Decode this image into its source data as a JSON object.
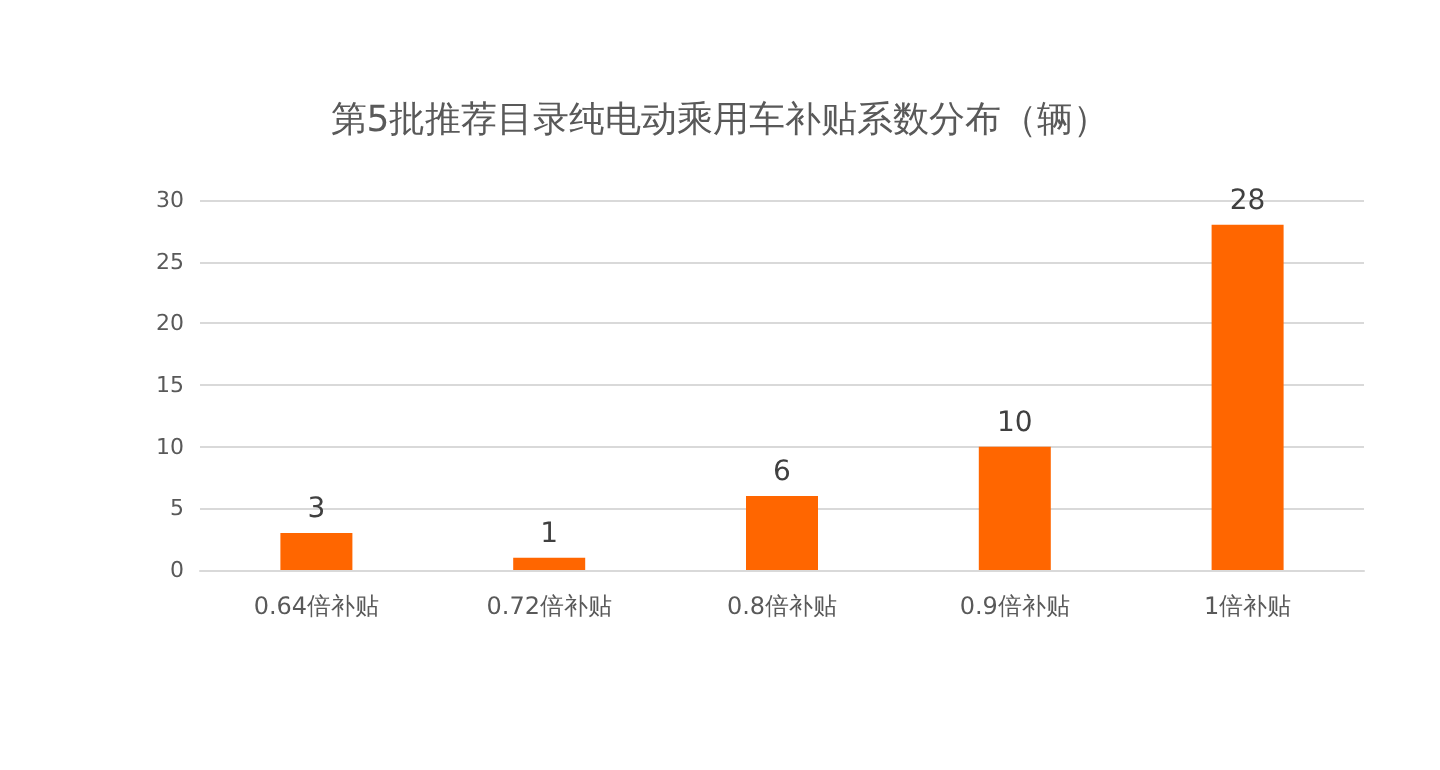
{
  "chart_data": {
    "type": "bar",
    "title": "第5批推荐目录纯电动乘用车补贴系数分布（辆）",
    "categories": [
      "0.64倍补贴",
      "0.72倍补贴",
      "0.8倍补贴",
      "0.9倍补贴",
      "1倍补贴"
    ],
    "values": [
      3,
      1,
      6,
      10,
      28
    ],
    "color": "#ff6600",
    "ylim": [
      0,
      30
    ],
    "yticks": [
      0,
      5,
      10,
      15,
      20,
      25,
      30
    ],
    "grid": "y",
    "data_labels": true
  }
}
